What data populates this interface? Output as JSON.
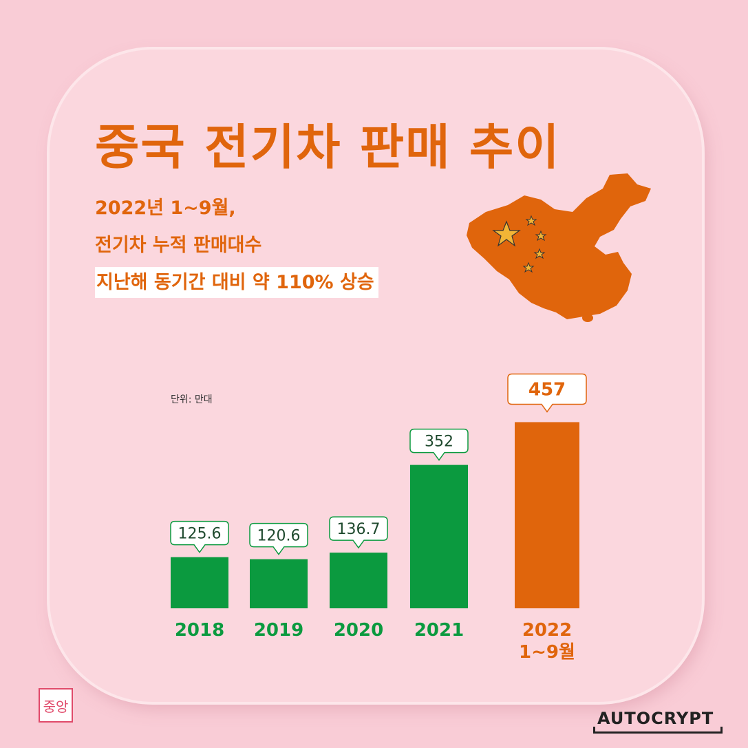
{
  "header": {
    "title": "중국 전기차 판매 추이",
    "lines": [
      "2022년 1~9월,",
      "전기차 누적 판매대수",
      "지난해 동기간 대비 약 110% 상승"
    ]
  },
  "unit_label": "단위: 만대",
  "brand": "AUTOCRYPT",
  "logo_text": "중앙",
  "colors": {
    "green": "#0b9a3f",
    "orange": "#e0650c",
    "background": "#f9ccd6",
    "card": "#fbd7de"
  },
  "chart_data": {
    "type": "bar",
    "categories": [
      "2018",
      "2019",
      "2020",
      "2021",
      "2022\n1~9월"
    ],
    "values": [
      125.6,
      120.6,
      136.7,
      352,
      457
    ],
    "data_labels": [
      "125.6",
      "120.6",
      "136.7",
      "352",
      "457"
    ],
    "highlight_index": 4,
    "title": "중국 전기차 판매 추이",
    "ylabel": "",
    "ylim": [
      0,
      480
    ],
    "grid": false
  }
}
